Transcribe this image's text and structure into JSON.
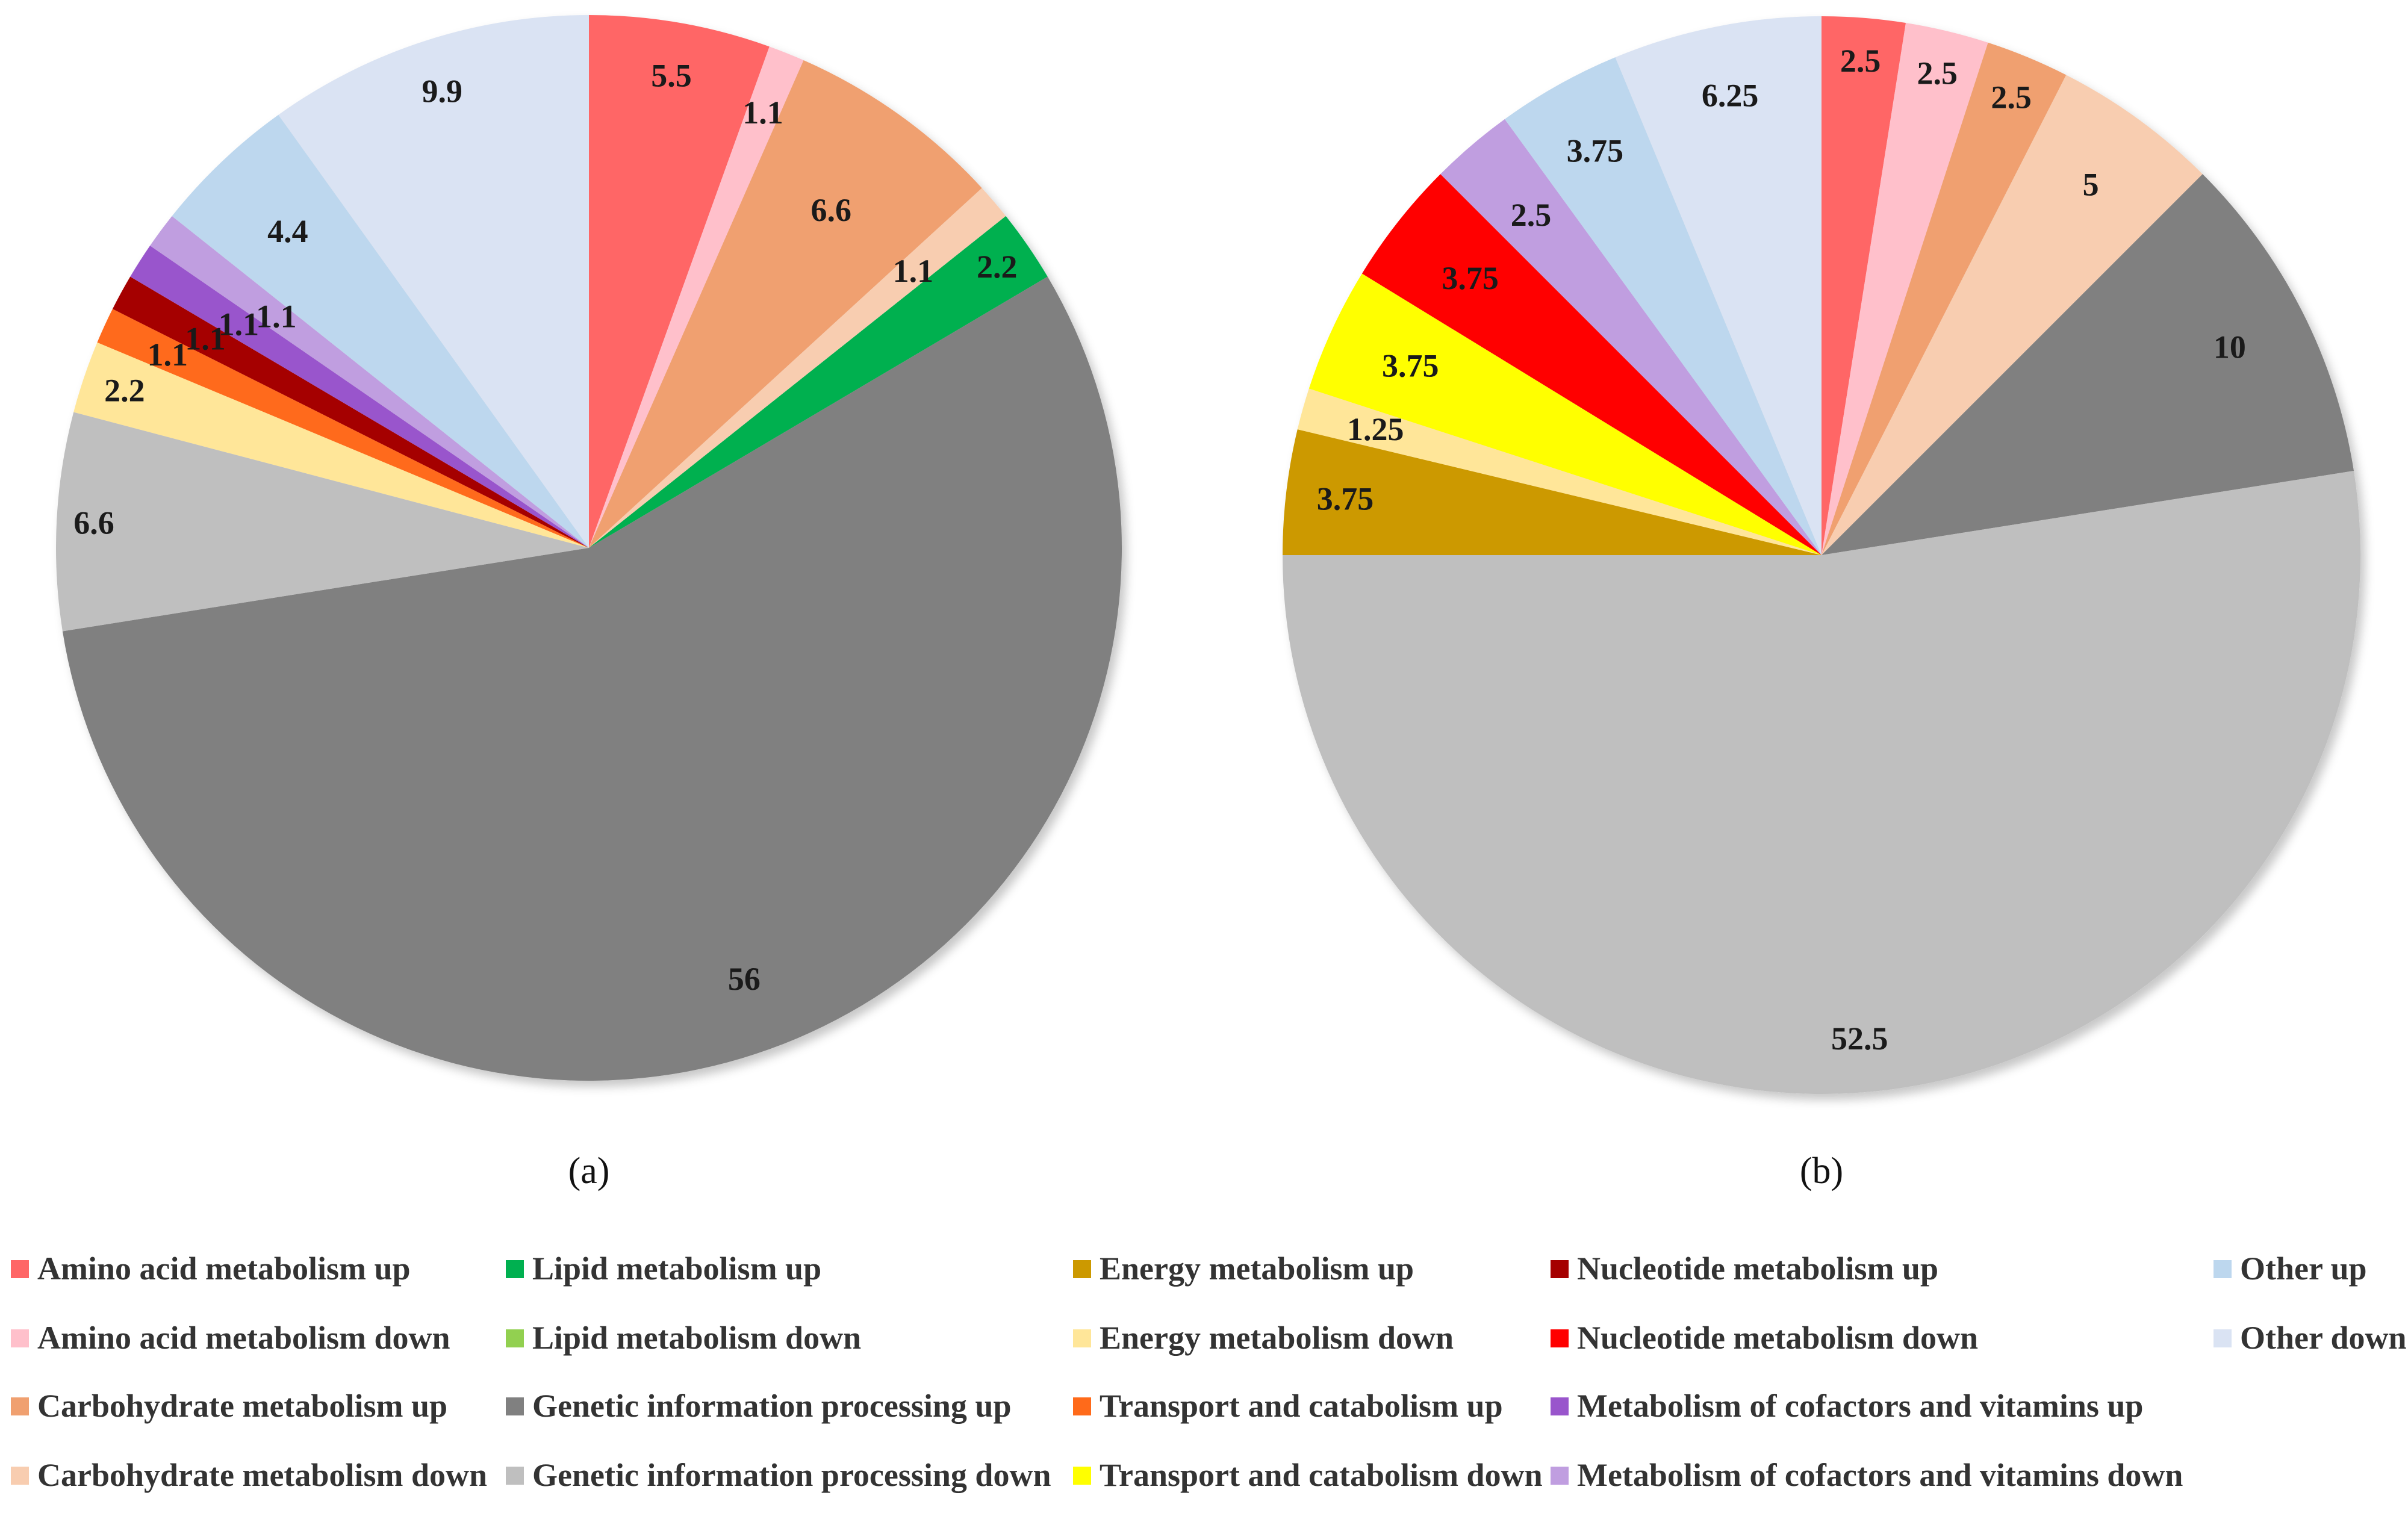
{
  "legend": [
    {
      "label": "Amino acid metabolism up",
      "color": "#FF6666"
    },
    {
      "label": "Amino acid metabolism down",
      "color": "#FFC0CB"
    },
    {
      "label": "Carbohydrate metabolism up",
      "color": "#F0A070"
    },
    {
      "label": "Carbohydrate metabolism down",
      "color": "#F8CDB0"
    },
    {
      "label": "Lipid metabolism up",
      "color": "#00B050"
    },
    {
      "label": "Lipid metabolism down",
      "color": "#92D050"
    },
    {
      "label": "Genetic information processing up",
      "color": "#808080"
    },
    {
      "label": "Genetic information processing down",
      "color": "#BFBFBF"
    },
    {
      "label": "Energy metabolism up",
      "color": "#CC9900"
    },
    {
      "label": "Energy metabolism down",
      "color": "#FFE699"
    },
    {
      "label": "Transport and catabolism up",
      "color": "#FF6A1A"
    },
    {
      "label": "Transport and catabolism down",
      "color": "#FFFF00"
    },
    {
      "label": "Nucleotide metabolism up",
      "color": "#A50000"
    },
    {
      "label": "Nucleotide metabolism down",
      "color": "#FF0000"
    },
    {
      "label": "Metabolism of cofactors and vitamins up",
      "color": "#9955CC"
    },
    {
      "label": "Metabolism of cofactors and vitamins down",
      "color": "#C09EE0"
    },
    {
      "label": "Other up",
      "color": "#BDD7EE"
    },
    {
      "label": "Other down",
      "color": "#DAE3F3"
    }
  ],
  "chart_data": [
    {
      "type": "pie",
      "panel_label": "(a)",
      "slices": [
        {
          "category": "Amino acid metabolism up",
          "value": 5.5,
          "label": "5.5"
        },
        {
          "category": "Amino acid metabolism down",
          "value": 1.1,
          "label": "1.1"
        },
        {
          "category": "Carbohydrate metabolism up",
          "value": 6.6,
          "label": "6.6"
        },
        {
          "category": "Carbohydrate metabolism down",
          "value": 1.1,
          "label": "1.1"
        },
        {
          "category": "Lipid metabolism up",
          "value": 2.2,
          "label": "2.2"
        },
        {
          "category": "Genetic information processing up",
          "value": 56,
          "label": "56"
        },
        {
          "category": "Genetic information processing down",
          "value": 6.6,
          "label": "6.6"
        },
        {
          "category": "Energy metabolism down",
          "value": 2.2,
          "label": "2.2"
        },
        {
          "category": "Transport and catabolism up",
          "value": 1.1,
          "label": "1.1"
        },
        {
          "category": "Nucleotide metabolism up",
          "value": 1.1,
          "label": "1.1"
        },
        {
          "category": "Metabolism of cofactors and vitamins up",
          "value": 1.1,
          "label": "1.1"
        },
        {
          "category": "Metabolism of cofactors and vitamins down",
          "value": 1.1,
          "label": "1.1"
        },
        {
          "category": "Other up",
          "value": 4.4,
          "label": "4.4"
        },
        {
          "category": "Other down",
          "value": 9.9,
          "label": "9.9"
        }
      ]
    },
    {
      "type": "pie",
      "panel_label": "(b)",
      "slices": [
        {
          "category": "Amino acid metabolism up",
          "value": 2.5,
          "label": "2.5"
        },
        {
          "category": "Amino acid metabolism down",
          "value": 2.5,
          "label": "2.5"
        },
        {
          "category": "Carbohydrate metabolism up",
          "value": 2.5,
          "label": "2.5"
        },
        {
          "category": "Carbohydrate metabolism down",
          "value": 5,
          "label": "5"
        },
        {
          "category": "Genetic information processing up",
          "value": 10,
          "label": "10"
        },
        {
          "category": "Genetic information processing down",
          "value": 52.5,
          "label": "52.5"
        },
        {
          "category": "Energy metabolism up",
          "value": 3.75,
          "label": "3.75"
        },
        {
          "category": "Energy metabolism down",
          "value": 1.25,
          "label": "1.25"
        },
        {
          "category": "Transport and catabolism down",
          "value": 3.75,
          "label": "3.75"
        },
        {
          "category": "Nucleotide metabolism down",
          "value": 3.75,
          "label": "3.75"
        },
        {
          "category": "Metabolism of cofactors and vitamins down",
          "value": 2.5,
          "label": "2.5"
        },
        {
          "category": "Other up",
          "value": 3.75,
          "label": "3.75"
        },
        {
          "category": "Other down",
          "value": 6.25,
          "label": "6.25"
        }
      ]
    }
  ]
}
